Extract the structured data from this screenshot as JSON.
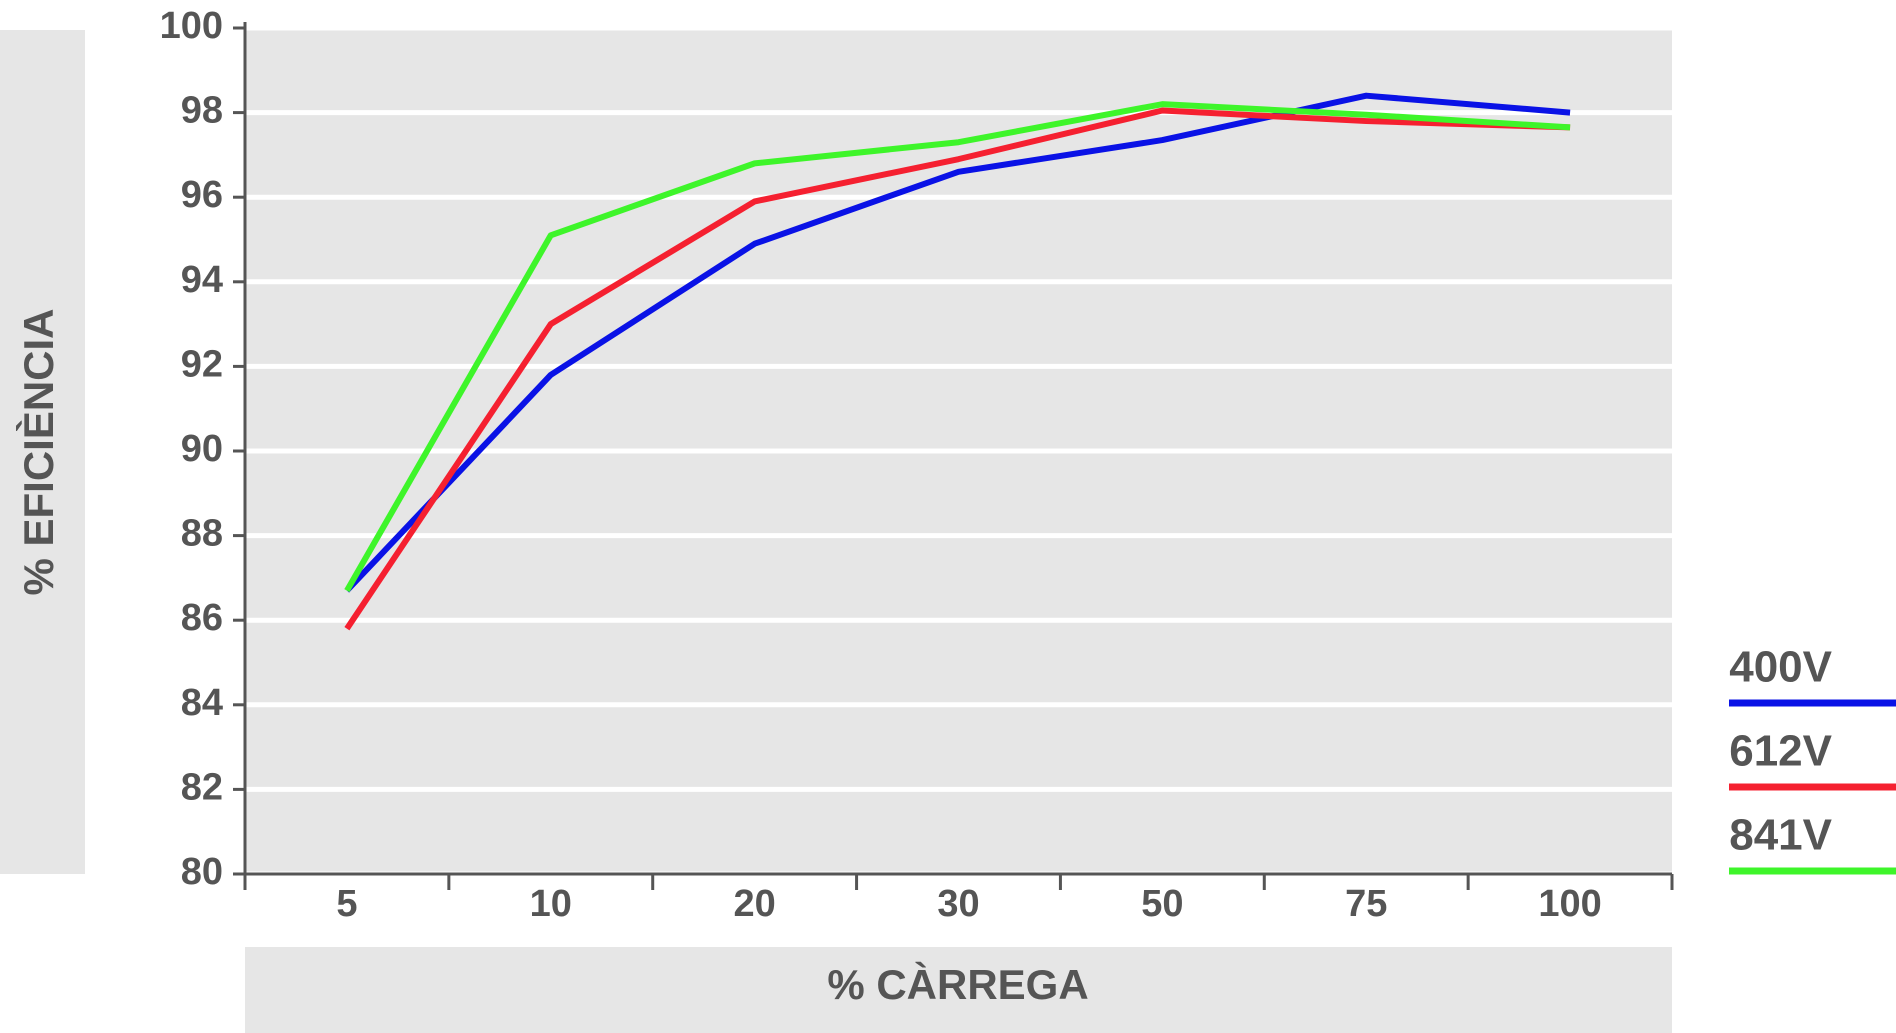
{
  "chart_data": {
    "type": "line",
    "x_label": "% CÀRREGA",
    "y_label": "% EFICIÈNCIA",
    "categories": [
      "5",
      "10",
      "20",
      "30",
      "50",
      "75",
      "100"
    ],
    "series": [
      {
        "name": "400V",
        "color": "#0a12e6",
        "values": [
          86.7,
          91.8,
          94.9,
          96.6,
          97.35,
          98.4,
          98.0
        ]
      },
      {
        "name": "612V",
        "color": "#f52030",
        "values": [
          85.8,
          93.0,
          95.9,
          96.9,
          98.05,
          97.8,
          97.65
        ]
      },
      {
        "name": "841V",
        "color": "#3ef52a",
        "values": [
          86.7,
          95.1,
          96.8,
          97.3,
          98.2,
          97.95,
          97.65
        ]
      }
    ],
    "ylim": [
      80,
      100
    ],
    "yticks": [
      80,
      82,
      84,
      86,
      88,
      90,
      92,
      94,
      96,
      98,
      100
    ],
    "grid": true
  }
}
